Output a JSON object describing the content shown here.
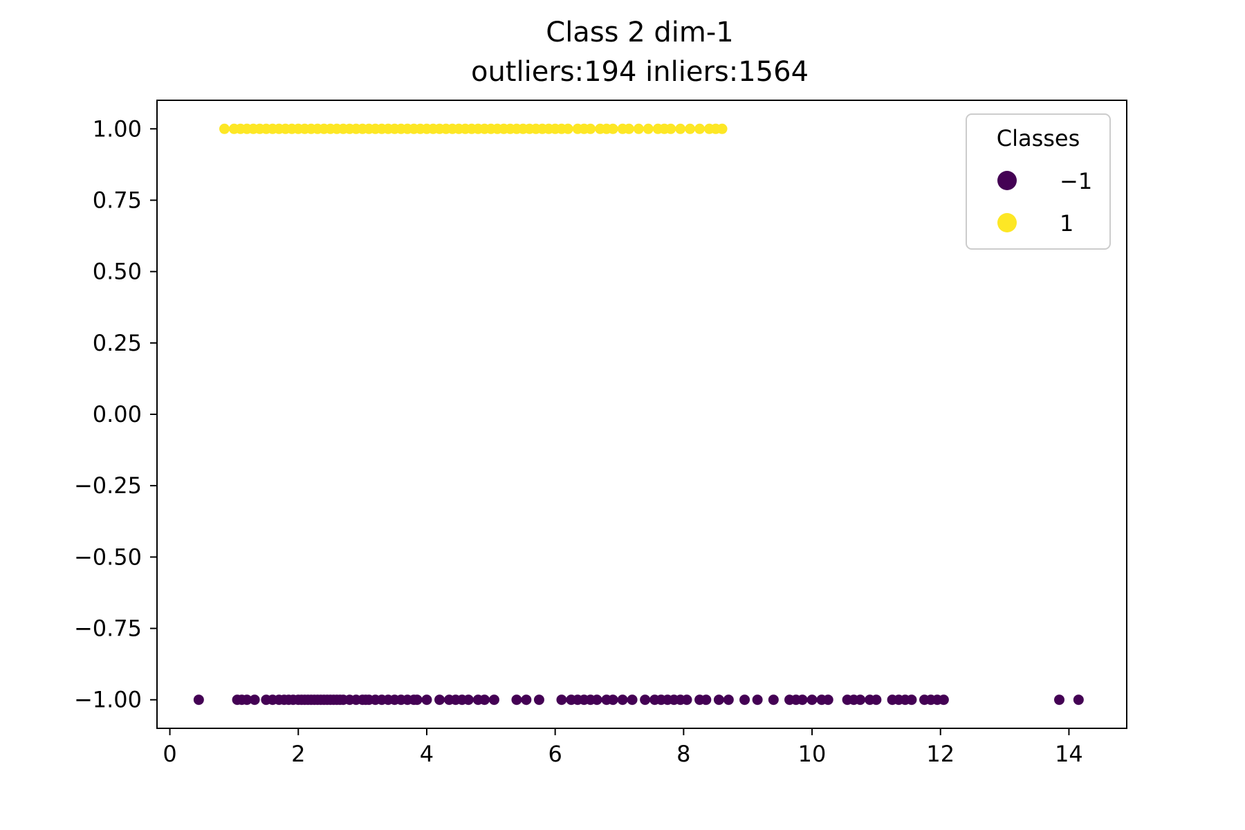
{
  "chart_data": {
    "type": "scatter",
    "title": "Class 2 dim-1",
    "subtitle": "outliers:194  inliers:1564",
    "xlabel": "",
    "ylabel": "",
    "xlim": [
      -0.2,
      14.9
    ],
    "ylim": [
      -1.1,
      1.1
    ],
    "x_ticks": [
      0,
      2,
      4,
      6,
      8,
      10,
      12,
      14
    ],
    "y_ticks": [
      1.0,
      0.75,
      0.5,
      0.25,
      0.0,
      -0.25,
      -0.5,
      -0.75,
      -1.0
    ],
    "x_tick_labels": [
      "0",
      "2",
      "4",
      "6",
      "8",
      "10",
      "12",
      "14"
    ],
    "y_tick_labels": [
      "1.00",
      "0.75",
      "0.50",
      "0.25",
      "0.00",
      "−0.25",
      "−0.50",
      "−0.75",
      "−1.00"
    ],
    "grid": false,
    "legend": {
      "title": "Classes",
      "placement": "top-right",
      "entries": [
        {
          "label": "−1",
          "color": "#440154"
        },
        {
          "label": "1",
          "color": "#fde725"
        }
      ]
    },
    "series": [
      {
        "class": -1,
        "color": "#440154",
        "y": -1,
        "x": [
          0.45,
          1.05,
          1.12,
          1.2,
          1.32,
          1.5,
          1.6,
          1.7,
          1.78,
          1.85,
          1.92,
          2.0,
          2.05,
          2.1,
          2.15,
          2.2,
          2.25,
          2.3,
          2.35,
          2.4,
          2.45,
          2.5,
          2.55,
          2.6,
          2.65,
          2.7,
          2.8,
          2.9,
          3.0,
          3.05,
          3.1,
          3.2,
          3.3,
          3.4,
          3.5,
          3.6,
          3.7,
          3.8,
          3.85,
          4.0,
          4.2,
          4.35,
          4.45,
          4.55,
          4.65,
          4.8,
          4.9,
          5.05,
          5.4,
          5.55,
          5.75,
          6.1,
          6.25,
          6.35,
          6.45,
          6.55,
          6.65,
          6.8,
          6.9,
          7.05,
          7.2,
          7.4,
          7.55,
          7.65,
          7.75,
          7.85,
          7.95,
          8.05,
          8.25,
          8.35,
          8.55,
          8.7,
          8.95,
          9.15,
          9.4,
          9.65,
          9.75,
          9.85,
          10.0,
          10.15,
          10.25,
          10.55,
          10.65,
          10.75,
          10.9,
          11.0,
          11.25,
          11.35,
          11.45,
          11.55,
          11.75,
          11.85,
          11.95,
          12.05,
          13.85,
          14.15
        ]
      },
      {
        "class": 1,
        "color": "#fde725",
        "y": 1,
        "x": [
          0.85,
          1.0,
          1.1,
          1.2,
          1.3,
          1.4,
          1.5,
          1.6,
          1.7,
          1.8,
          1.9,
          2.0,
          2.1,
          2.2,
          2.3,
          2.4,
          2.5,
          2.6,
          2.7,
          2.8,
          2.9,
          3.0,
          3.1,
          3.2,
          3.3,
          3.4,
          3.5,
          3.6,
          3.7,
          3.8,
          3.9,
          4.0,
          4.1,
          4.2,
          4.3,
          4.4,
          4.5,
          4.6,
          4.7,
          4.8,
          4.9,
          5.0,
          5.1,
          5.2,
          5.3,
          5.4,
          5.5,
          5.6,
          5.7,
          5.8,
          5.9,
          6.0,
          6.1,
          6.2,
          6.35,
          6.45,
          6.55,
          6.7,
          6.8,
          6.9,
          7.05,
          7.15,
          7.3,
          7.45,
          7.6,
          7.7,
          7.8,
          7.95,
          8.1,
          8.25,
          8.4,
          8.5,
          8.6
        ]
      }
    ]
  },
  "colors": {
    "class_neg1": "#440154",
    "class_pos1": "#fde725",
    "axis": "#000000",
    "legend_border": "#cccccc"
  }
}
